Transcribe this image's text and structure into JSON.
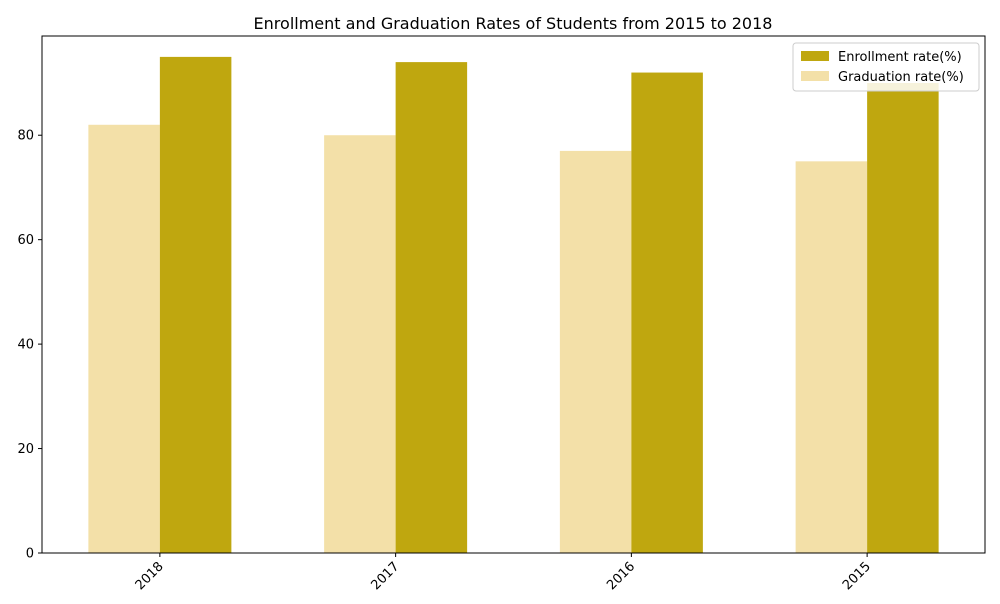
{
  "chart_data": {
    "type": "bar",
    "title": "Enrollment and Graduation Rates of Students from 2015 to 2018",
    "xlabel": "",
    "ylabel": "",
    "categories": [
      "2018",
      "2017",
      "2016",
      "2015"
    ],
    "series": [
      {
        "name": "Enrollment rate(%)",
        "values": [
          95,
          94,
          92,
          90
        ],
        "color": "#bfa70f"
      },
      {
        "name": "Graduation rate(%)",
        "values": [
          82,
          80,
          77,
          75
        ],
        "color": "#f3e0a8"
      }
    ],
    "ylim": [
      0,
      99
    ],
    "yticks": [
      0,
      20,
      40,
      60,
      80
    ],
    "grid": false,
    "legend_placement": "top-right",
    "xtick_rotation": 45
  }
}
